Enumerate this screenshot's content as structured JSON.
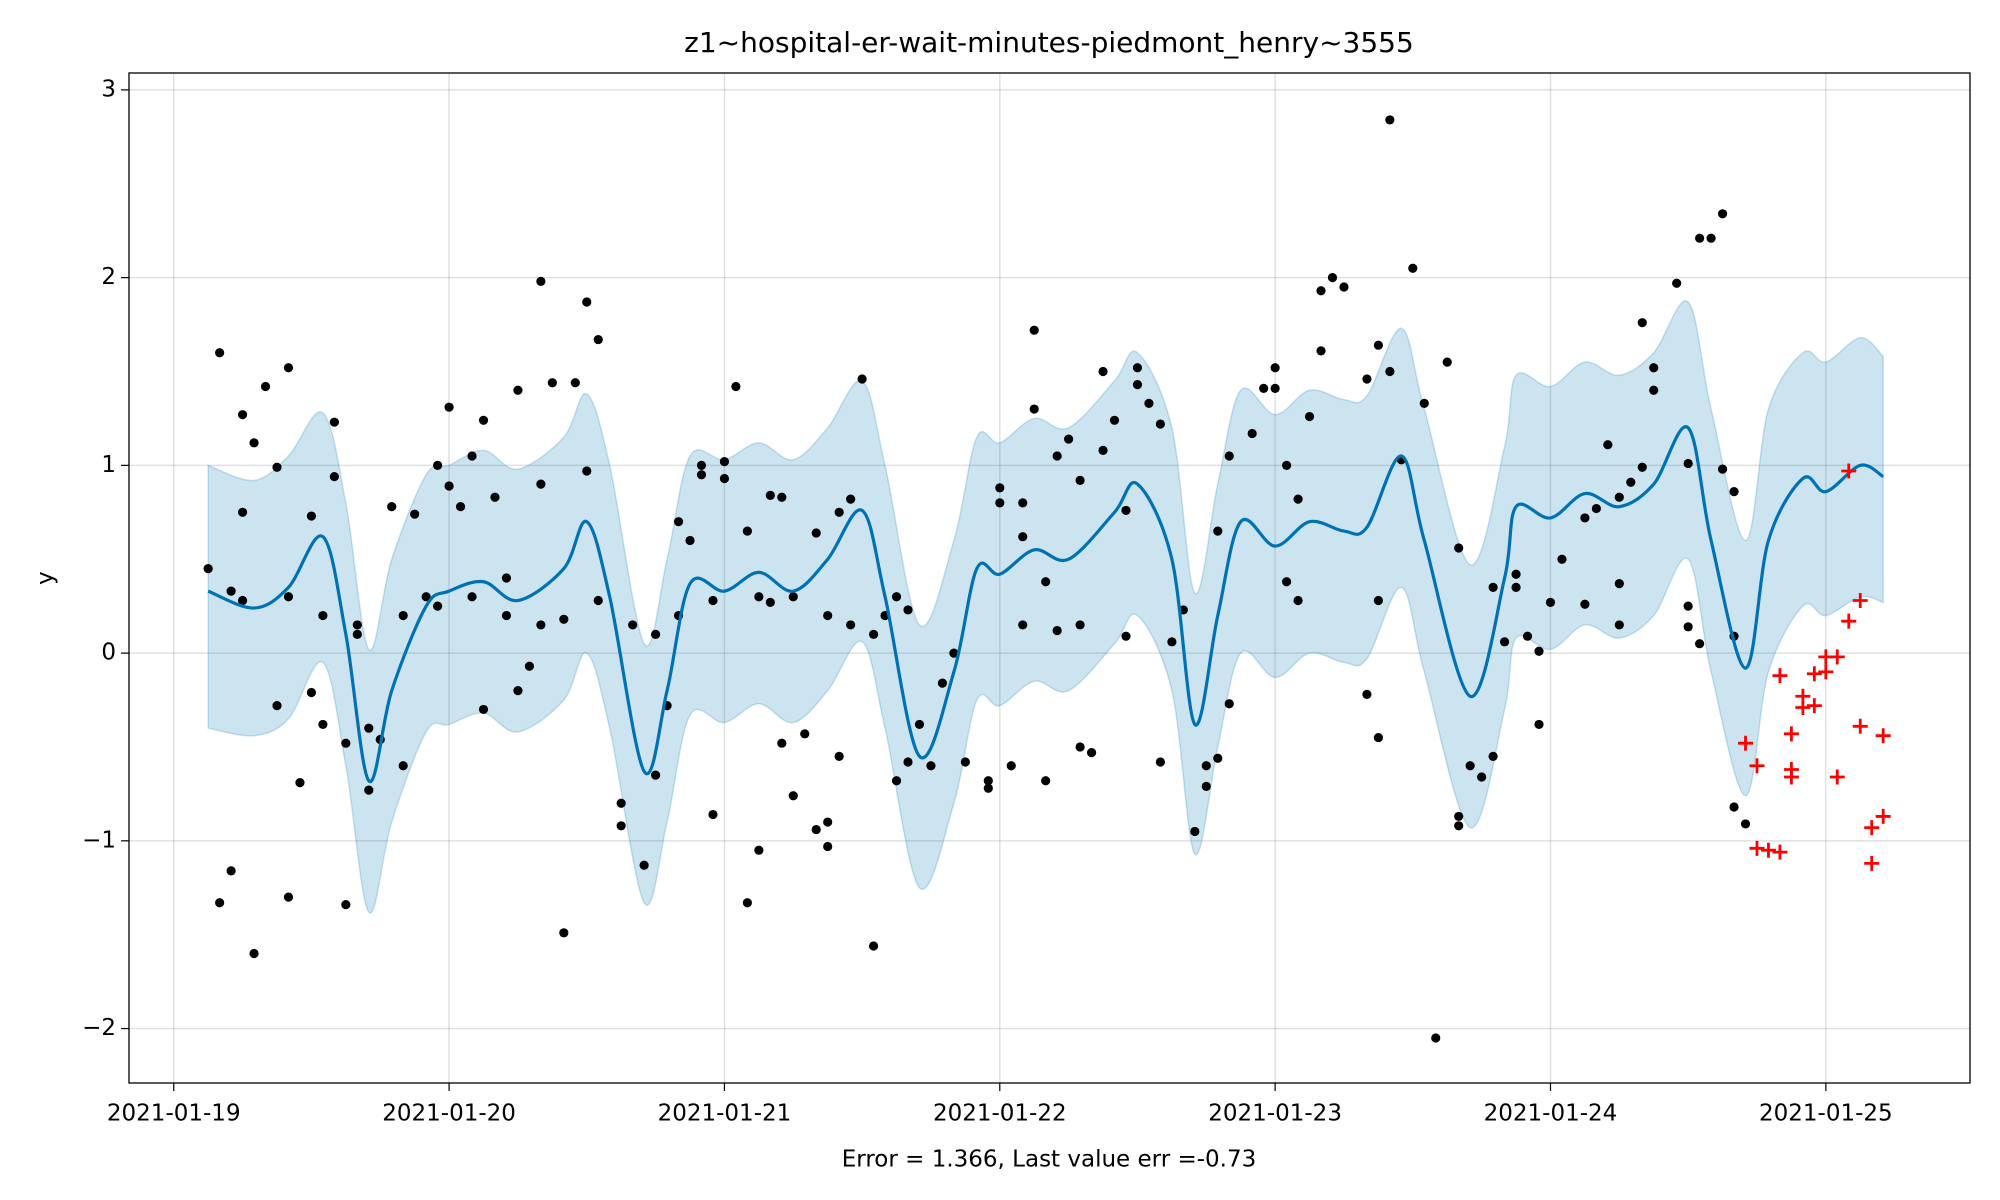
{
  "chart_data": {
    "type": "forecast",
    "title": "z1~hospital-er-wait-minutes-piedmont_henry~3555",
    "xlabel": "Error = 1.366, Last value err =-0.73",
    "ylabel": "y",
    "xlim": [
      "2021-01-18 20:06",
      "2021-01-25 12:34"
    ],
    "ylim": [
      -2.29,
      3.09
    ],
    "xticks": [
      "2021-01-19",
      "2021-01-20",
      "2021-01-21",
      "2021-01-22",
      "2021-01-23",
      "2021-01-24",
      "2021-01-25"
    ],
    "yticks": [
      {
        "value": -2,
        "label": "−2"
      },
      {
        "value": -1,
        "label": "−1"
      },
      0,
      1,
      2,
      3
    ],
    "grid": true,
    "forecast": {
      "color": "#0072B2",
      "band_color": "#0072B2",
      "x": [
        "2021-01-19 03:00",
        "2021-01-19 07:00",
        "2021-01-19 10:00",
        "2021-01-19 13:00",
        "2021-01-19 15:00",
        "2021-01-19 17:00",
        "2021-01-19 19:00",
        "2021-01-19 22:00",
        "2021-01-20 00:00",
        "2021-01-20 03:00",
        "2021-01-20 06:00",
        "2021-01-20 10:00",
        "2021-01-20 12:00",
        "2021-01-20 14:00",
        "2021-01-20 17:00",
        "2021-01-20 19:00",
        "2021-01-20 21:00",
        "2021-01-21 00:00",
        "2021-01-21 03:00",
        "2021-01-21 06:00",
        "2021-01-21 09:00",
        "2021-01-21 12:00",
        "2021-01-21 14:00",
        "2021-01-21 17:00",
        "2021-01-21 20:00",
        "2021-01-21 22:00",
        "2021-01-22 00:00",
        "2021-01-22 03:00",
        "2021-01-22 06:00",
        "2021-01-22 10:00",
        "2021-01-22 12:00",
        "2021-01-22 15:00",
        "2021-01-22 17:00",
        "2021-01-22 19:00",
        "2021-01-22 21:00",
        "2021-01-23 00:00",
        "2021-01-23 03:00",
        "2021-01-23 06:00",
        "2021-01-23 08:00",
        "2021-01-23 11:00",
        "2021-01-23 13:00",
        "2021-01-23 17:00",
        "2021-01-23 20:00",
        "2021-01-23 21:00",
        "2021-01-24 00:00",
        "2021-01-24 03:00",
        "2021-01-24 06:00",
        "2021-01-24 09:00",
        "2021-01-24 12:00",
        "2021-01-24 14:00",
        "2021-01-24 17:00",
        "2021-01-24 19:00",
        "2021-01-24 22:00",
        "2021-01-25 00:00",
        "2021-01-25 03:00",
        "2021-01-25 05:00"
      ],
      "values": [
        0.33,
        0.24,
        0.35,
        0.62,
        0.1,
        -0.68,
        -0.2,
        0.25,
        0.33,
        0.38,
        0.28,
        0.45,
        0.7,
        0.3,
        -0.63,
        -0.2,
        0.37,
        0.33,
        0.43,
        0.33,
        0.5,
        0.76,
        0.3,
        -0.55,
        -0.1,
        0.45,
        0.42,
        0.55,
        0.5,
        0.75,
        0.9,
        0.5,
        -0.38,
        0.2,
        0.7,
        0.57,
        0.7,
        0.65,
        0.67,
        1.05,
        0.6,
        -0.23,
        0.4,
        0.78,
        0.72,
        0.85,
        0.78,
        0.9,
        1.2,
        0.6,
        -0.08,
        0.6,
        0.93,
        0.86,
        1.0,
        0.94
      ],
      "upper": [
        1.0,
        0.92,
        1.05,
        1.28,
        0.8,
        0.02,
        0.5,
        0.95,
        1.0,
        1.08,
        0.98,
        1.15,
        1.38,
        1.0,
        0.05,
        0.5,
        1.05,
        1.03,
        1.12,
        1.03,
        1.2,
        1.45,
        1.0,
        0.15,
        0.6,
        1.15,
        1.12,
        1.25,
        1.2,
        1.45,
        1.6,
        1.2,
        0.32,
        0.9,
        1.4,
        1.27,
        1.4,
        1.35,
        1.37,
        1.73,
        1.3,
        0.47,
        1.1,
        1.48,
        1.42,
        1.55,
        1.48,
        1.6,
        1.87,
        1.3,
        0.6,
        1.3,
        1.6,
        1.55,
        1.68,
        1.58
      ],
      "lower": [
        -0.4,
        -0.44,
        -0.35,
        -0.05,
        -0.6,
        -1.38,
        -0.9,
        -0.42,
        -0.38,
        -0.32,
        -0.42,
        -0.25,
        0.0,
        -0.4,
        -1.33,
        -0.9,
        -0.33,
        -0.37,
        -0.27,
        -0.37,
        -0.2,
        0.06,
        -0.4,
        -1.25,
        -0.8,
        -0.25,
        -0.28,
        -0.15,
        -0.2,
        0.05,
        0.2,
        -0.2,
        -1.07,
        -0.5,
        0.0,
        -0.13,
        0.0,
        -0.05,
        -0.03,
        0.35,
        -0.1,
        -0.93,
        -0.3,
        0.08,
        0.02,
        0.15,
        0.08,
        0.2,
        0.5,
        -0.1,
        -0.76,
        -0.1,
        0.25,
        0.2,
        0.3,
        0.27
      ]
    },
    "observed": {
      "color": "#000000",
      "x": [
        "2021-01-19 03:00",
        "2021-01-19 04:00",
        "2021-01-19 04:00",
        "2021-01-19 05:00",
        "2021-01-19 05:00",
        "2021-01-19 06:00",
        "2021-01-19 06:00",
        "2021-01-19 06:00",
        "2021-01-19 07:00",
        "2021-01-19 07:00",
        "2021-01-19 08:00",
        "2021-01-19 09:00",
        "2021-01-19 09:00",
        "2021-01-19 10:00",
        "2021-01-19 10:00",
        "2021-01-19 10:00",
        "2021-01-19 11:00",
        "2021-01-19 12:00",
        "2021-01-19 12:00",
        "2021-01-19 13:00",
        "2021-01-19 13:00",
        "2021-01-19 14:00",
        "2021-01-19 14:00",
        "2021-01-19 15:00",
        "2021-01-19 15:00",
        "2021-01-19 16:00",
        "2021-01-19 16:00",
        "2021-01-19 17:00",
        "2021-01-19 17:00",
        "2021-01-19 18:00",
        "2021-01-19 19:00",
        "2021-01-19 20:00",
        "2021-01-19 20:00",
        "2021-01-19 21:00",
        "2021-01-19 22:00",
        "2021-01-19 23:00",
        "2021-01-19 23:00",
        "2021-01-20 00:00",
        "2021-01-20 00:00",
        "2021-01-20 01:00",
        "2021-01-20 02:00",
        "2021-01-20 02:00",
        "2021-01-20 03:00",
        "2021-01-20 03:00",
        "2021-01-20 04:00",
        "2021-01-20 05:00",
        "2021-01-20 05:00",
        "2021-01-20 06:00",
        "2021-01-20 06:00",
        "2021-01-20 07:00",
        "2021-01-20 08:00",
        "2021-01-20 08:00",
        "2021-01-20 08:00",
        "2021-01-20 09:00",
        "2021-01-20 10:00",
        "2021-01-20 10:00",
        "2021-01-20 11:00",
        "2021-01-20 12:00",
        "2021-01-20 12:00",
        "2021-01-20 13:00",
        "2021-01-20 13:00",
        "2021-01-20 15:00",
        "2021-01-20 15:00",
        "2021-01-20 16:00",
        "2021-01-20 17:00",
        "2021-01-20 18:00",
        "2021-01-20 18:00",
        "2021-01-20 19:00",
        "2021-01-20 20:00",
        "2021-01-20 20:00",
        "2021-01-20 21:00",
        "2021-01-20 22:00",
        "2021-01-20 22:00",
        "2021-01-20 23:00",
        "2021-01-20 23:00",
        "2021-01-21 00:00",
        "2021-01-21 00:00",
        "2021-01-21 01:00",
        "2021-01-21 02:00",
        "2021-01-21 02:00",
        "2021-01-21 03:00",
        "2021-01-21 03:00",
        "2021-01-21 04:00",
        "2021-01-21 04:00",
        "2021-01-21 05:00",
        "2021-01-21 05:00",
        "2021-01-21 06:00",
        "2021-01-21 06:00",
        "2021-01-21 07:00",
        "2021-01-21 08:00",
        "2021-01-21 08:00",
        "2021-01-21 09:00",
        "2021-01-21 09:00",
        "2021-01-21 09:00",
        "2021-01-21 10:00",
        "2021-01-21 10:00",
        "2021-01-21 11:00",
        "2021-01-21 11:00",
        "2021-01-21 12:00",
        "2021-01-21 13:00",
        "2021-01-21 13:00",
        "2021-01-21 14:00",
        "2021-01-21 15:00",
        "2021-01-21 15:00",
        "2021-01-21 16:00",
        "2021-01-21 16:00",
        "2021-01-21 17:00",
        "2021-01-21 18:00",
        "2021-01-21 19:00",
        "2021-01-21 20:00",
        "2021-01-21 21:00",
        "2021-01-21 23:00",
        "2021-01-21 23:00",
        "2021-01-22 00:00",
        "2021-01-22 00:00",
        "2021-01-22 01:00",
        "2021-01-22 02:00",
        "2021-01-22 02:00",
        "2021-01-22 02:00",
        "2021-01-22 03:00",
        "2021-01-22 03:00",
        "2021-01-22 04:00",
        "2021-01-22 04:00",
        "2021-01-22 05:00",
        "2021-01-22 05:00",
        "2021-01-22 06:00",
        "2021-01-22 07:00",
        "2021-01-22 07:00",
        "2021-01-22 07:00",
        "2021-01-22 08:00",
        "2021-01-22 09:00",
        "2021-01-22 09:00",
        "2021-01-22 10:00",
        "2021-01-22 11:00",
        "2021-01-22 11:00",
        "2021-01-22 12:00",
        "2021-01-22 12:00",
        "2021-01-22 13:00",
        "2021-01-22 14:00",
        "2021-01-22 14:00",
        "2021-01-22 15:00",
        "2021-01-22 16:00",
        "2021-01-22 17:00",
        "2021-01-22 18:00",
        "2021-01-22 18:00",
        "2021-01-22 19:00",
        "2021-01-22 19:00",
        "2021-01-22 20:00",
        "2021-01-22 20:00",
        "2021-01-22 22:00",
        "2021-01-22 23:00",
        "2021-01-23 00:00",
        "2021-01-23 00:00",
        "2021-01-23 01:00",
        "2021-01-23 01:00",
        "2021-01-23 02:00",
        "2021-01-23 02:00",
        "2021-01-23 03:00",
        "2021-01-23 04:00",
        "2021-01-23 04:00",
        "2021-01-23 05:00",
        "2021-01-23 06:00",
        "2021-01-23 08:00",
        "2021-01-23 08:00",
        "2021-01-23 09:00",
        "2021-01-23 09:00",
        "2021-01-23 09:00",
        "2021-01-23 10:00",
        "2021-01-23 10:00",
        "2021-01-23 11:00",
        "2021-01-23 12:00",
        "2021-01-23 13:00",
        "2021-01-23 14:00",
        "2021-01-23 15:00",
        "2021-01-23 16:00",
        "2021-01-23 16:00",
        "2021-01-23 16:00",
        "2021-01-23 17:00",
        "2021-01-23 18:00",
        "2021-01-23 19:00",
        "2021-01-23 19:00",
        "2021-01-23 20:00",
        "2021-01-23 21:00",
        "2021-01-23 21:00",
        "2021-01-23 22:00",
        "2021-01-23 23:00",
        "2021-01-23 23:00",
        "2021-01-24 00:00",
        "2021-01-24 01:00",
        "2021-01-24 03:00",
        "2021-01-24 03:00",
        "2021-01-24 04:00",
        "2021-01-24 05:00",
        "2021-01-24 06:00",
        "2021-01-24 06:00",
        "2021-01-24 06:00",
        "2021-01-24 07:00",
        "2021-01-24 08:00",
        "2021-01-24 08:00",
        "2021-01-24 09:00",
        "2021-01-24 09:00",
        "2021-01-24 11:00",
        "2021-01-24 12:00",
        "2021-01-24 12:00",
        "2021-01-24 12:00",
        "2021-01-24 13:00",
        "2021-01-24 13:00",
        "2021-01-24 14:00",
        "2021-01-24 15:00",
        "2021-01-24 15:00",
        "2021-01-24 16:00",
        "2021-01-24 16:00",
        "2021-01-24 16:00",
        "2021-01-24 17:00"
      ],
      "values": [
        0.45,
        1.6,
        -1.33,
        -1.16,
        0.33,
        1.27,
        0.75,
        0.28,
        -1.6,
        1.12,
        1.42,
        -0.28,
        0.99,
        1.52,
        -1.3,
        0.3,
        -0.69,
        0.73,
        -0.21,
        -0.38,
        0.2,
        1.23,
        0.94,
        -0.48,
        -1.34,
        0.1,
        0.15,
        -0.73,
        -0.4,
        -0.46,
        0.78,
        -0.6,
        0.2,
        0.74,
        0.3,
        1.0,
        0.25,
        0.89,
        1.31,
        0.78,
        1.05,
        0.3,
        1.24,
        -0.3,
        0.83,
        0.4,
        0.2,
        -0.2,
        1.4,
        -0.07,
        0.9,
        1.98,
        0.15,
        1.44,
        -1.49,
        0.18,
        1.44,
        0.97,
        1.87,
        1.67,
        0.28,
        -0.92,
        -0.8,
        0.15,
        -1.13,
        -0.65,
        0.1,
        -0.28,
        0.7,
        0.2,
        0.6,
        0.95,
        1.0,
        -0.86,
        0.28,
        1.02,
        0.93,
        1.42,
        -1.33,
        0.65,
        -1.05,
        0.3,
        0.84,
        0.27,
        0.83,
        -0.48,
        -0.76,
        0.3,
        -0.43,
        -0.94,
        0.64,
        -1.03,
        -0.9,
        0.2,
        -0.55,
        0.75,
        0.82,
        0.15,
        1.46,
        -1.56,
        0.1,
        0.2,
        -0.68,
        0.3,
        -0.58,
        0.23,
        -0.38,
        -0.6,
        -0.16,
        0.0,
        -0.58,
        -0.68,
        -0.72,
        0.88,
        0.8,
        -0.6,
        0.8,
        0.62,
        0.15,
        1.3,
        1.72,
        0.38,
        -0.68,
        1.05,
        0.12,
        1.14,
        -0.5,
        0.92,
        0.15,
        -0.53,
        1.08,
        1.5,
        1.24,
        0.76,
        0.09,
        1.43,
        1.52,
        1.33,
        1.22,
        -0.58,
        0.06,
        0.23,
        -0.95,
        -0.71,
        -0.6,
        0.65,
        -0.56,
        -0.27,
        1.05,
        1.17,
        1.41,
        1.52,
        1.41,
        1.0,
        0.38,
        0.28,
        0.82,
        1.26,
        1.61,
        1.93,
        2.0,
        1.95,
        -0.22,
        1.46,
        -0.45,
        1.64,
        0.28,
        1.5,
        2.84,
        1.03,
        2.05,
        1.33,
        -2.05,
        1.55,
        0.56,
        -0.87,
        -0.92,
        -0.6,
        -0.66,
        -0.55,
        0.35,
        0.06,
        0.42,
        0.35,
        0.09,
        0.01,
        -0.38,
        0.27,
        0.5,
        0.26,
        0.72,
        0.77,
        1.11,
        0.83,
        0.37,
        0.15,
        0.91,
        1.76,
        0.99,
        1.4,
        1.52,
        1.97,
        1.01,
        0.25,
        0.14,
        0.05,
        2.21,
        2.21,
        2.34,
        0.98,
        0.86,
        0.09,
        -0.82,
        -0.91
      ]
    },
    "future": {
      "color": "#ff0000",
      "x": [
        "2021-01-24 17:00",
        "2021-01-24 18:00",
        "2021-01-24 18:00",
        "2021-01-24 19:00",
        "2021-01-24 20:00",
        "2021-01-24 20:00",
        "2021-01-24 21:00",
        "2021-01-24 21:00",
        "2021-01-24 21:00",
        "2021-01-24 22:00",
        "2021-01-24 22:00",
        "2021-01-24 23:00",
        "2021-01-24 23:00",
        "2021-01-25 00:00",
        "2021-01-25 00:00",
        "2021-01-25 01:00",
        "2021-01-25 01:00",
        "2021-01-25 02:00",
        "2021-01-25 02:00",
        "2021-01-25 03:00",
        "2021-01-25 03:00",
        "2021-01-25 04:00",
        "2021-01-25 04:00",
        "2021-01-25 05:00",
        "2021-01-25 05:00"
      ],
      "values": [
        -0.48,
        -0.6,
        -1.04,
        -1.05,
        -1.06,
        -0.12,
        -0.62,
        -0.66,
        -0.43,
        -0.29,
        -0.23,
        -0.28,
        -0.11,
        -0.02,
        -0.1,
        -0.02,
        -0.66,
        0.17,
        0.97,
        0.28,
        -0.39,
        -1.12,
        -0.93,
        -0.87,
        -0.44
      ]
    }
  }
}
